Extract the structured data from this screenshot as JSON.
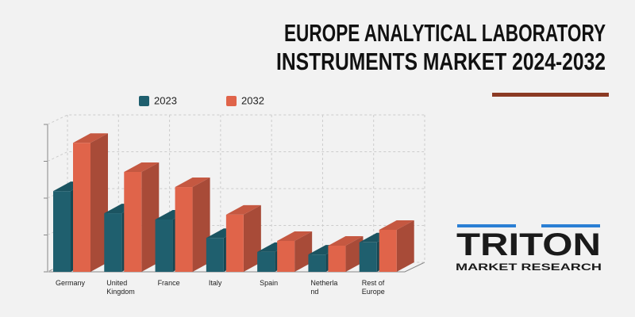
{
  "chart_data": {
    "type": "bar3d",
    "title_lines": [
      "EUROPE ANALYTICAL LABORATORY",
      "INSTRUMENTS MARKET 2024-2032"
    ],
    "categories": [
      "Germany",
      "United Kingdom",
      "France",
      "Italy",
      "Spain",
      "Netherland",
      "Rest of Europe"
    ],
    "series": [
      {
        "name": "2023",
        "color": "#1f5f6e",
        "values": [
          2.19,
          1.59,
          1.42,
          0.92,
          0.54,
          0.47,
          0.8
        ]
      },
      {
        "name": "2032",
        "color": "#e0644a",
        "values": [
          3.5,
          2.71,
          2.3,
          1.55,
          0.84,
          0.71,
          1.14
        ]
      }
    ],
    "ylim": [
      0,
      4
    ],
    "yticks": [
      0,
      1,
      2,
      3,
      4
    ],
    "grid": true
  },
  "logo": {
    "name": "TRITON",
    "tagline": "MARKET RESEARCH"
  }
}
